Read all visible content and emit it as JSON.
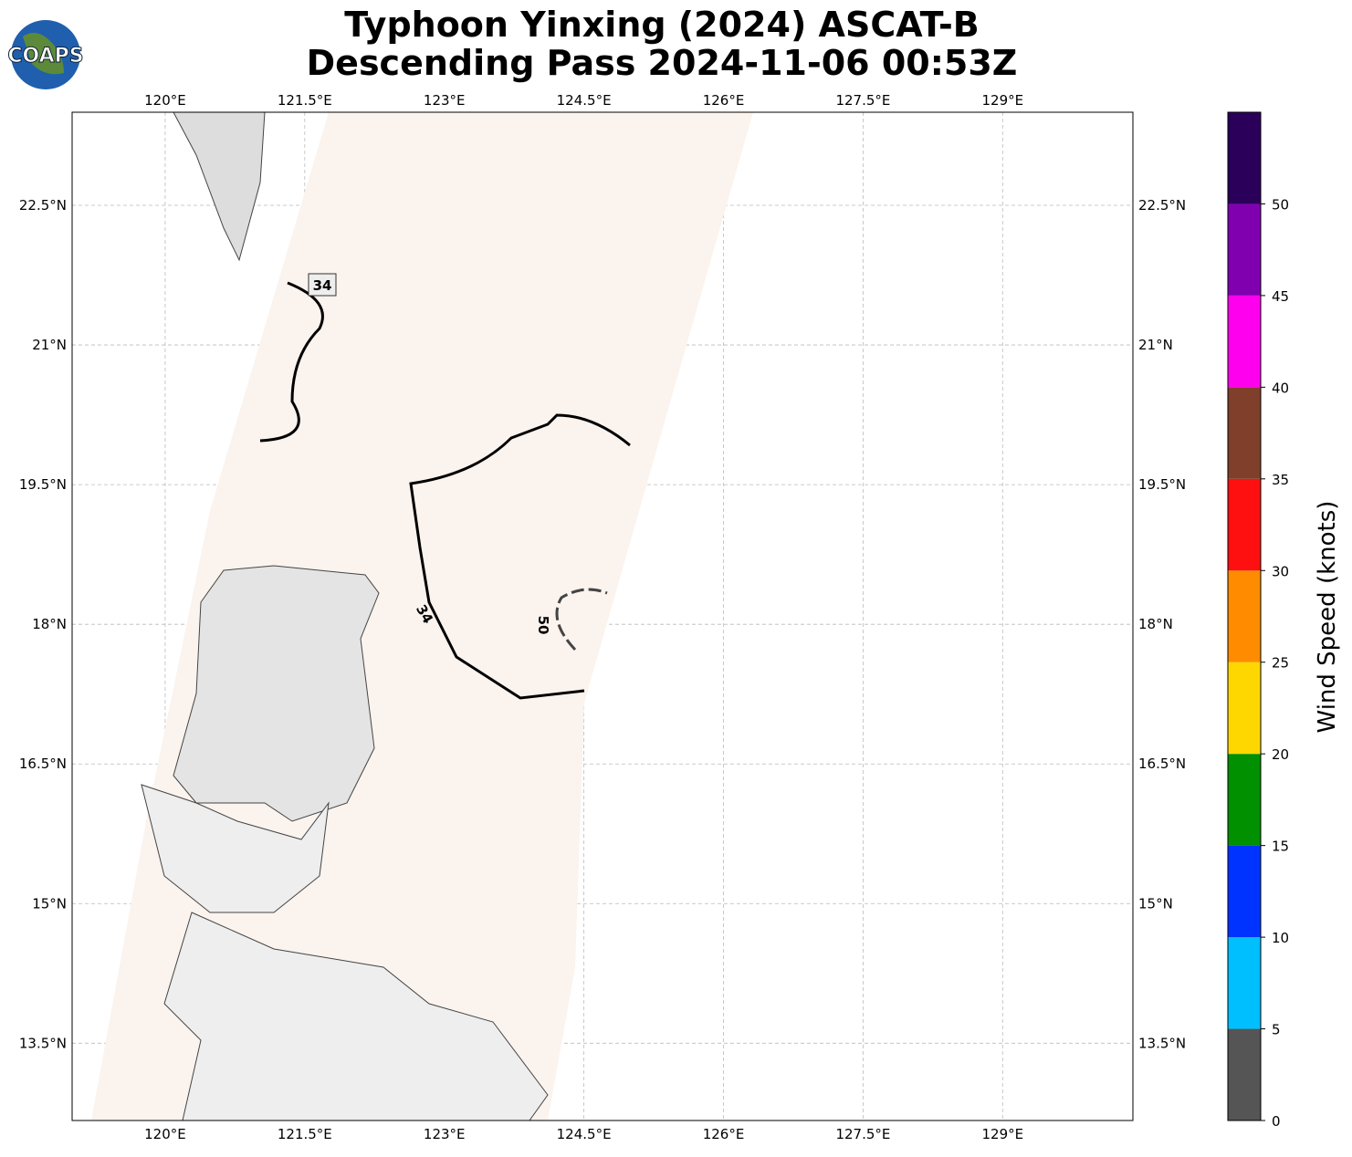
{
  "logo": "COAPS",
  "title": [
    "Typhoon Yinxing (2024) ASCAT-B",
    "Descending Pass 2024-11-06 00:53Z"
  ],
  "map": {
    "xlim": [
      119.0,
      130.4
    ],
    "ylim": [
      12.67,
      23.5
    ],
    "xticks": [
      {
        "value": 120,
        "label": "120°E"
      },
      {
        "value": 121.5,
        "label": "121.5°E"
      },
      {
        "value": 123,
        "label": "123°E"
      },
      {
        "value": 124.5,
        "label": "124.5°E"
      },
      {
        "value": 126,
        "label": "126°E"
      },
      {
        "value": 127.5,
        "label": "127.5°E"
      },
      {
        "value": 129,
        "label": "129°E"
      }
    ],
    "yticks": [
      {
        "value": 13.5,
        "label": "13.5°N"
      },
      {
        "value": 15,
        "label": "15°N"
      },
      {
        "value": 16.5,
        "label": "16.5°N"
      },
      {
        "value": 18,
        "label": "18°N"
      },
      {
        "value": 19.5,
        "label": "19.5°N"
      },
      {
        "value": 21,
        "label": "21°N"
      },
      {
        "value": 22.5,
        "label": "22.5°N"
      }
    ],
    "contour_labels": [
      "34",
      "34",
      "50"
    ]
  },
  "colorbar": {
    "label": "Wind Speed (knots)",
    "lim": [
      0,
      55
    ],
    "ticks": [
      0,
      5,
      10,
      15,
      20,
      25,
      30,
      35,
      40,
      45,
      50
    ],
    "colors": [
      "#555555",
      "#00bfff",
      "#0033ff",
      "#009000",
      "#ffd700",
      "#ff8c00",
      "#ff1010",
      "#7f3f2a",
      "#ff00ee",
      "#8000b0",
      "#2a005a"
    ]
  }
}
